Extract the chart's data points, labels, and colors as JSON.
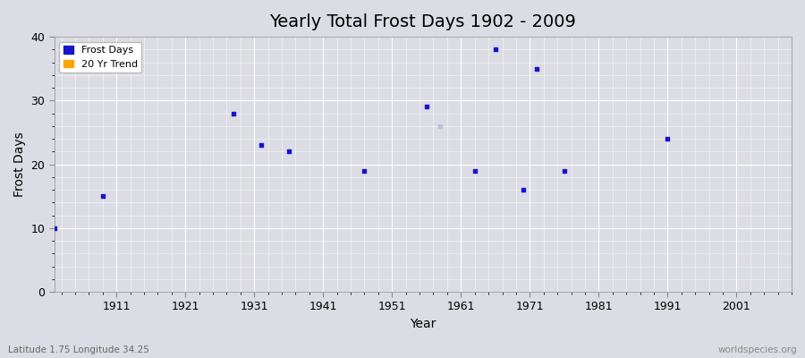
{
  "title": "Yearly Total Frost Days 1902 - 2009",
  "xlabel": "Year",
  "ylabel": "Frost Days",
  "xlim": [
    1902,
    2009
  ],
  "ylim": [
    0,
    40
  ],
  "xticks": [
    1911,
    1921,
    1931,
    1941,
    1951,
    1961,
    1971,
    1981,
    1991,
    2001
  ],
  "yticks": [
    0,
    10,
    20,
    30,
    40
  ],
  "background_color": "#dcdce4",
  "plot_bg_color": "#dcdce4",
  "frost_days_color": "#1515cc",
  "trend_color": "#c0c0d8",
  "scatter_x": [
    1902,
    1909,
    1928,
    1932,
    1936,
    1947,
    1956,
    1963,
    1966,
    1970,
    1972,
    1976,
    1991
  ],
  "scatter_y": [
    10,
    15,
    28,
    23,
    22,
    19,
    29,
    19,
    38,
    16,
    35,
    19,
    24
  ],
  "trend_x": [
    1958
  ],
  "trend_y": [
    26
  ],
  "watermark_left": "Latitude 1.75 Longitude 34.25",
  "watermark_right": "worldspecies.org",
  "legend_frost": "Frost Days",
  "legend_trend": "20 Yr Trend",
  "title_fontsize": 14,
  "axis_label_fontsize": 10,
  "tick_fontsize": 9,
  "marker_size": 3
}
